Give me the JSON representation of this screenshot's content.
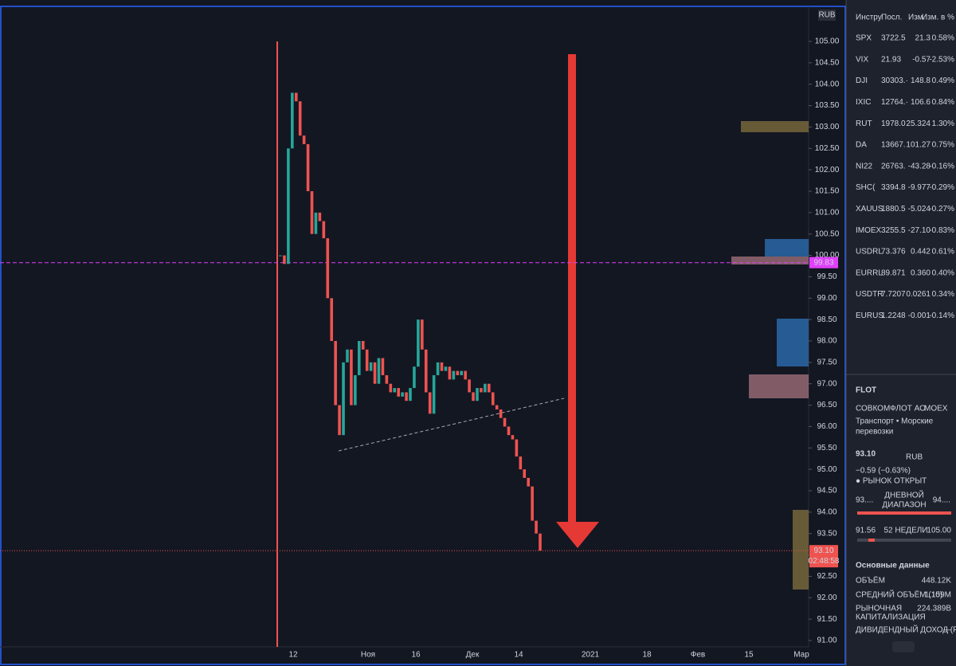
{
  "chart": {
    "currency": "RUB",
    "price_ticks": [
      {
        "value": 105,
        "label": "105.00"
      },
      {
        "value": 104.5,
        "label": "104.50"
      },
      {
        "value": 104,
        "label": "104.00"
      },
      {
        "value": 103.5,
        "label": "103.50"
      },
      {
        "value": 103,
        "label": "103.00"
      },
      {
        "value": 102.5,
        "label": "102.50"
      },
      {
        "value": 102,
        "label": "102.00"
      },
      {
        "value": 101.5,
        "label": "101.50"
      },
      {
        "value": 101,
        "label": "101.00"
      },
      {
        "value": 100.5,
        "label": "100.50"
      },
      {
        "value": 100,
        "label": "100.00"
      },
      {
        "value": 99.5,
        "label": "99.50"
      },
      {
        "value": 99,
        "label": "99.00"
      },
      {
        "value": 98.5,
        "label": "98.50"
      },
      {
        "value": 98,
        "label": "98.00"
      },
      {
        "value": 97.5,
        "label": "97.50"
      },
      {
        "value": 97,
        "label": "97.00"
      },
      {
        "value": 96.5,
        "label": "96.50"
      },
      {
        "value": 96,
        "label": "96.00"
      },
      {
        "value": 95.5,
        "label": "95.50"
      },
      {
        "value": 95,
        "label": "95.00"
      },
      {
        "value": 94.5,
        "label": "94.50"
      },
      {
        "value": 94,
        "label": "94.00"
      },
      {
        "value": 93.5,
        "label": "93.50"
      },
      {
        "value": 93,
        "label": "93.00"
      },
      {
        "value": 92.5,
        "label": "92.50"
      },
      {
        "value": 92,
        "label": "92.00"
      },
      {
        "value": 91.5,
        "label": "91.50"
      },
      {
        "value": 91,
        "label": "91.00"
      }
    ],
    "time_labels": [
      "12",
      "Ноя",
      "16",
      "Дек",
      "14",
      "2021",
      "18",
      "Фев",
      "15",
      "Мар"
    ],
    "closes": [
      100.0,
      99.8,
      102.5,
      103.8,
      103.6,
      102.8,
      102.6,
      101.5,
      100.5,
      101.0,
      100.8,
      100.4,
      99.0,
      98.0,
      96.5,
      95.8,
      97.5,
      97.8,
      96.5,
      97.2,
      98.0,
      97.8,
      97.3,
      97.5,
      97.0,
      97.6,
      97.2,
      97.0,
      96.8,
      96.9,
      96.7,
      96.8,
      96.6,
      96.9,
      97.4,
      98.5,
      97.8,
      96.8,
      96.3,
      97.2,
      97.5,
      97.3,
      97.4,
      97.1,
      97.3,
      97.2,
      97.3,
      97.1,
      96.8,
      96.6,
      96.9,
      96.8,
      97.0,
      96.8,
      96.5,
      96.4,
      96.2,
      96.0,
      95.8,
      95.7,
      95.3,
      95.0,
      94.8,
      94.6,
      93.8,
      93.5,
      93.1
    ],
    "marker_price": {
      "value": 99.83,
      "label": "99.83"
    },
    "last_price": {
      "value": 93.1,
      "label": "93.10"
    },
    "countdown": "02:48:58"
  },
  "watchlist": {
    "header": [
      "Инстру",
      "Посл.",
      "Изм.",
      "Изм. в %"
    ],
    "rows": [
      [
        "SPX",
        "3722.5",
        "21.3",
        "0.58%"
      ],
      [
        "VIX",
        "21.93",
        "-0.57",
        "-2.53%"
      ],
      [
        "DJI",
        "30303.·",
        "148.8",
        "0.49%"
      ],
      [
        "IXIC",
        "12764.·",
        "106.6",
        "0.84%"
      ],
      [
        "RUT",
        "1978.0",
        "25.324",
        "1.30%"
      ],
      [
        "DA",
        "13667.",
        "101.27",
        "0.75%"
      ],
      [
        "NI22",
        "26763.",
        "-43.28",
        "-0.16%"
      ],
      [
        "SHC(",
        "3394.8",
        "-9.977",
        "-0.29%"
      ],
      [
        "XAUUS",
        "1880.5",
        "-5.024",
        "-0.27%"
      ],
      [
        "IMOEX",
        "3255.5",
        "-27.10",
        "-0.83%"
      ],
      [
        "USDRL",
        "73.376",
        "0.442",
        "0.61%"
      ],
      [
        "EURRL",
        "89.871",
        "0.360",
        "0.40%"
      ],
      [
        "USDTR",
        "7.7207",
        "0.0261",
        "0.34%"
      ],
      [
        "EURUS",
        "1.2248",
        "-0.001",
        "-0.14%"
      ]
    ]
  },
  "details": {
    "symbol": "FLOT",
    "company": "СОВКОМФЛОТ АО",
    "exchange": "MOEX",
    "sector": "Транспорт • Морские",
    "sector2": "перевозки",
    "price": "93.10",
    "currency": "RUB",
    "change": "−0.59 (−0.63%)",
    "status": "● РЫНОК ОТКРЫТ",
    "day_low": "93....",
    "day_label": "ДНЕВНОЙ",
    "day_label2": "ДИАПАЗОН",
    "day_high": "94....",
    "w52_low": "91.56",
    "w52_label": "52 НЕДЕЛИ",
    "w52_high": "105.00",
    "section": "Основные данные",
    "stats": [
      [
        "ОБЪЁМ",
        "448.12K"
      ],
      [
        "СРЕДНИЙ ОБЪЁМ (10)",
        "1.159M"
      ],
      [
        "РЫНОЧНАЯ",
        "224.389B"
      ],
      [
        "КАПИТАЛИЗАЦИЯ",
        ""
      ],
      [
        "ДИВИДЕНДНЫЙ ДОХОД (FY)",
        "—"
      ]
    ]
  }
}
